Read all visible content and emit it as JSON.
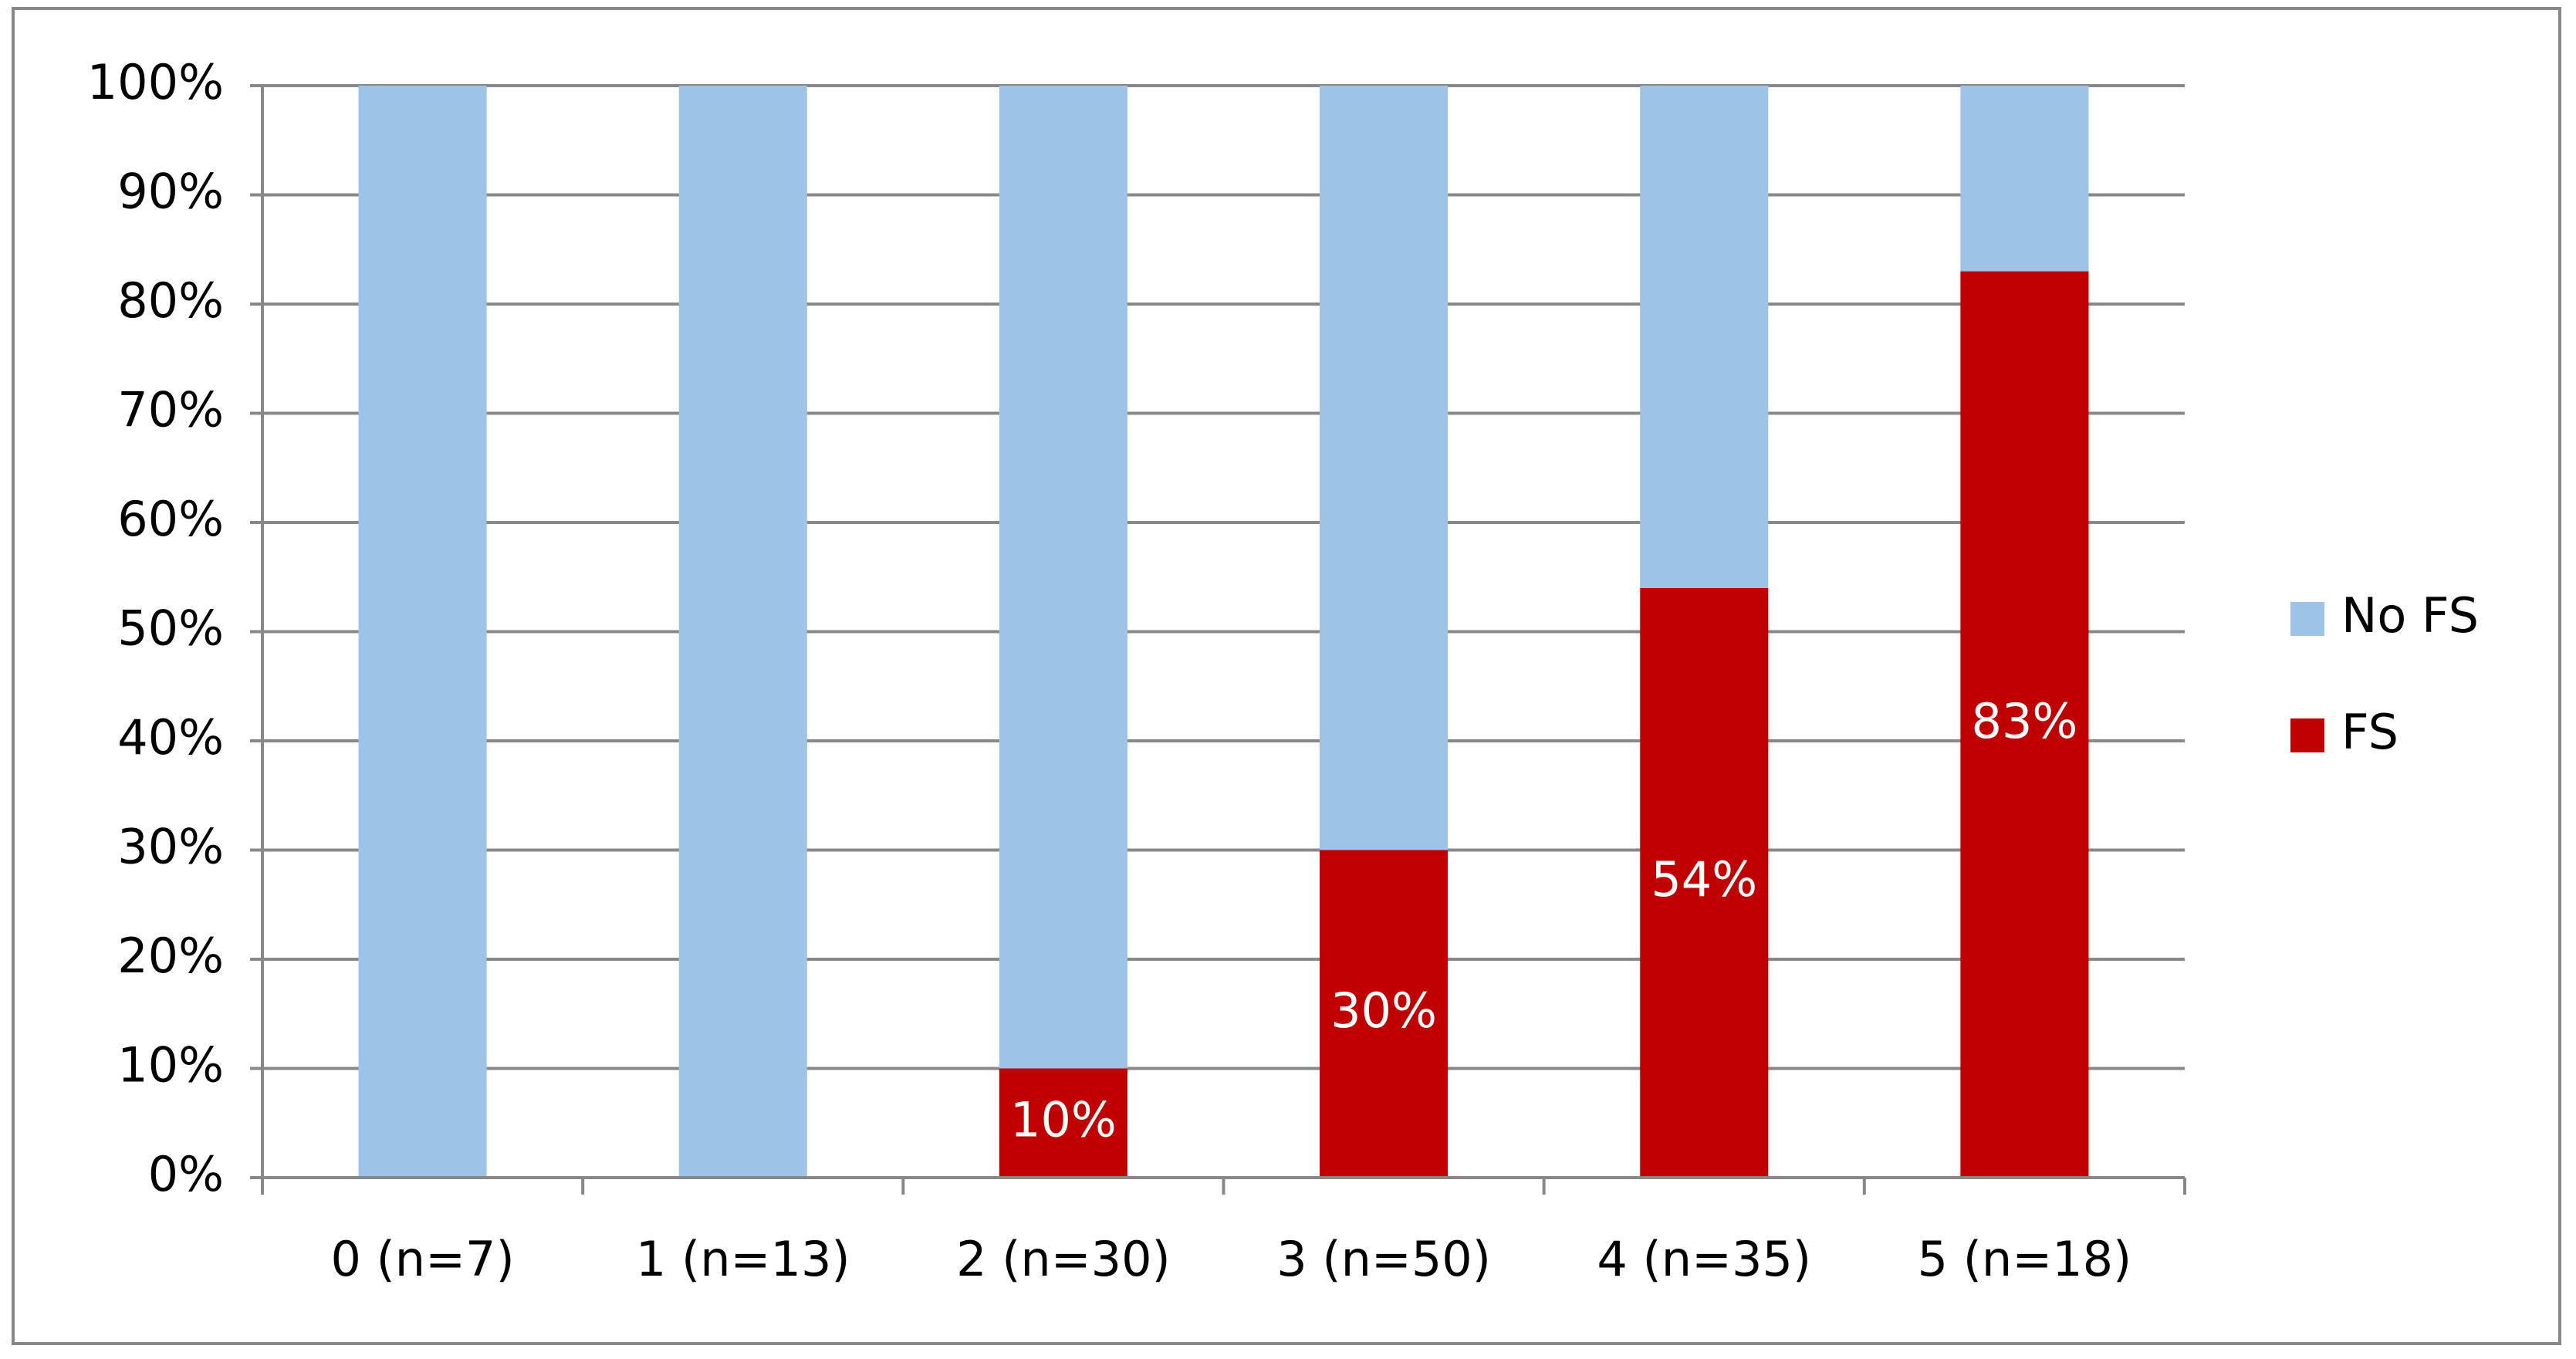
{
  "chart_data": {
    "type": "stacked-bar",
    "categories": [
      "0 (n=7)",
      "1 (n=13)",
      "2 (n=30)",
      "3 (n=50)",
      "4 (n=35)",
      "5 (n=18)"
    ],
    "series": [
      {
        "name": "FS",
        "color": "#c00000",
        "values": [
          0,
          0,
          10,
          30,
          54,
          83
        ],
        "value_labels": [
          null,
          null,
          "10%",
          "30%",
          "54%",
          "83%"
        ]
      },
      {
        "name": "No FS",
        "color": "#9dc3e6",
        "values": [
          100,
          100,
          90,
          70,
          46,
          17
        ]
      }
    ],
    "ylim": [
      0,
      100
    ],
    "yticks": [
      {
        "value": 0,
        "label": "0%"
      },
      {
        "value": 10,
        "label": "10%"
      },
      {
        "value": 20,
        "label": "20%"
      },
      {
        "value": 30,
        "label": "30%"
      },
      {
        "value": 40,
        "label": "40%"
      },
      {
        "value": 50,
        "label": "50%"
      },
      {
        "value": 60,
        "label": "60%"
      },
      {
        "value": 70,
        "label": "70%"
      },
      {
        "value": 80,
        "label": "80%"
      },
      {
        "value": 90,
        "label": "90%"
      },
      {
        "value": 100,
        "label": "100%"
      }
    ],
    "grid": true,
    "legend": "right"
  }
}
